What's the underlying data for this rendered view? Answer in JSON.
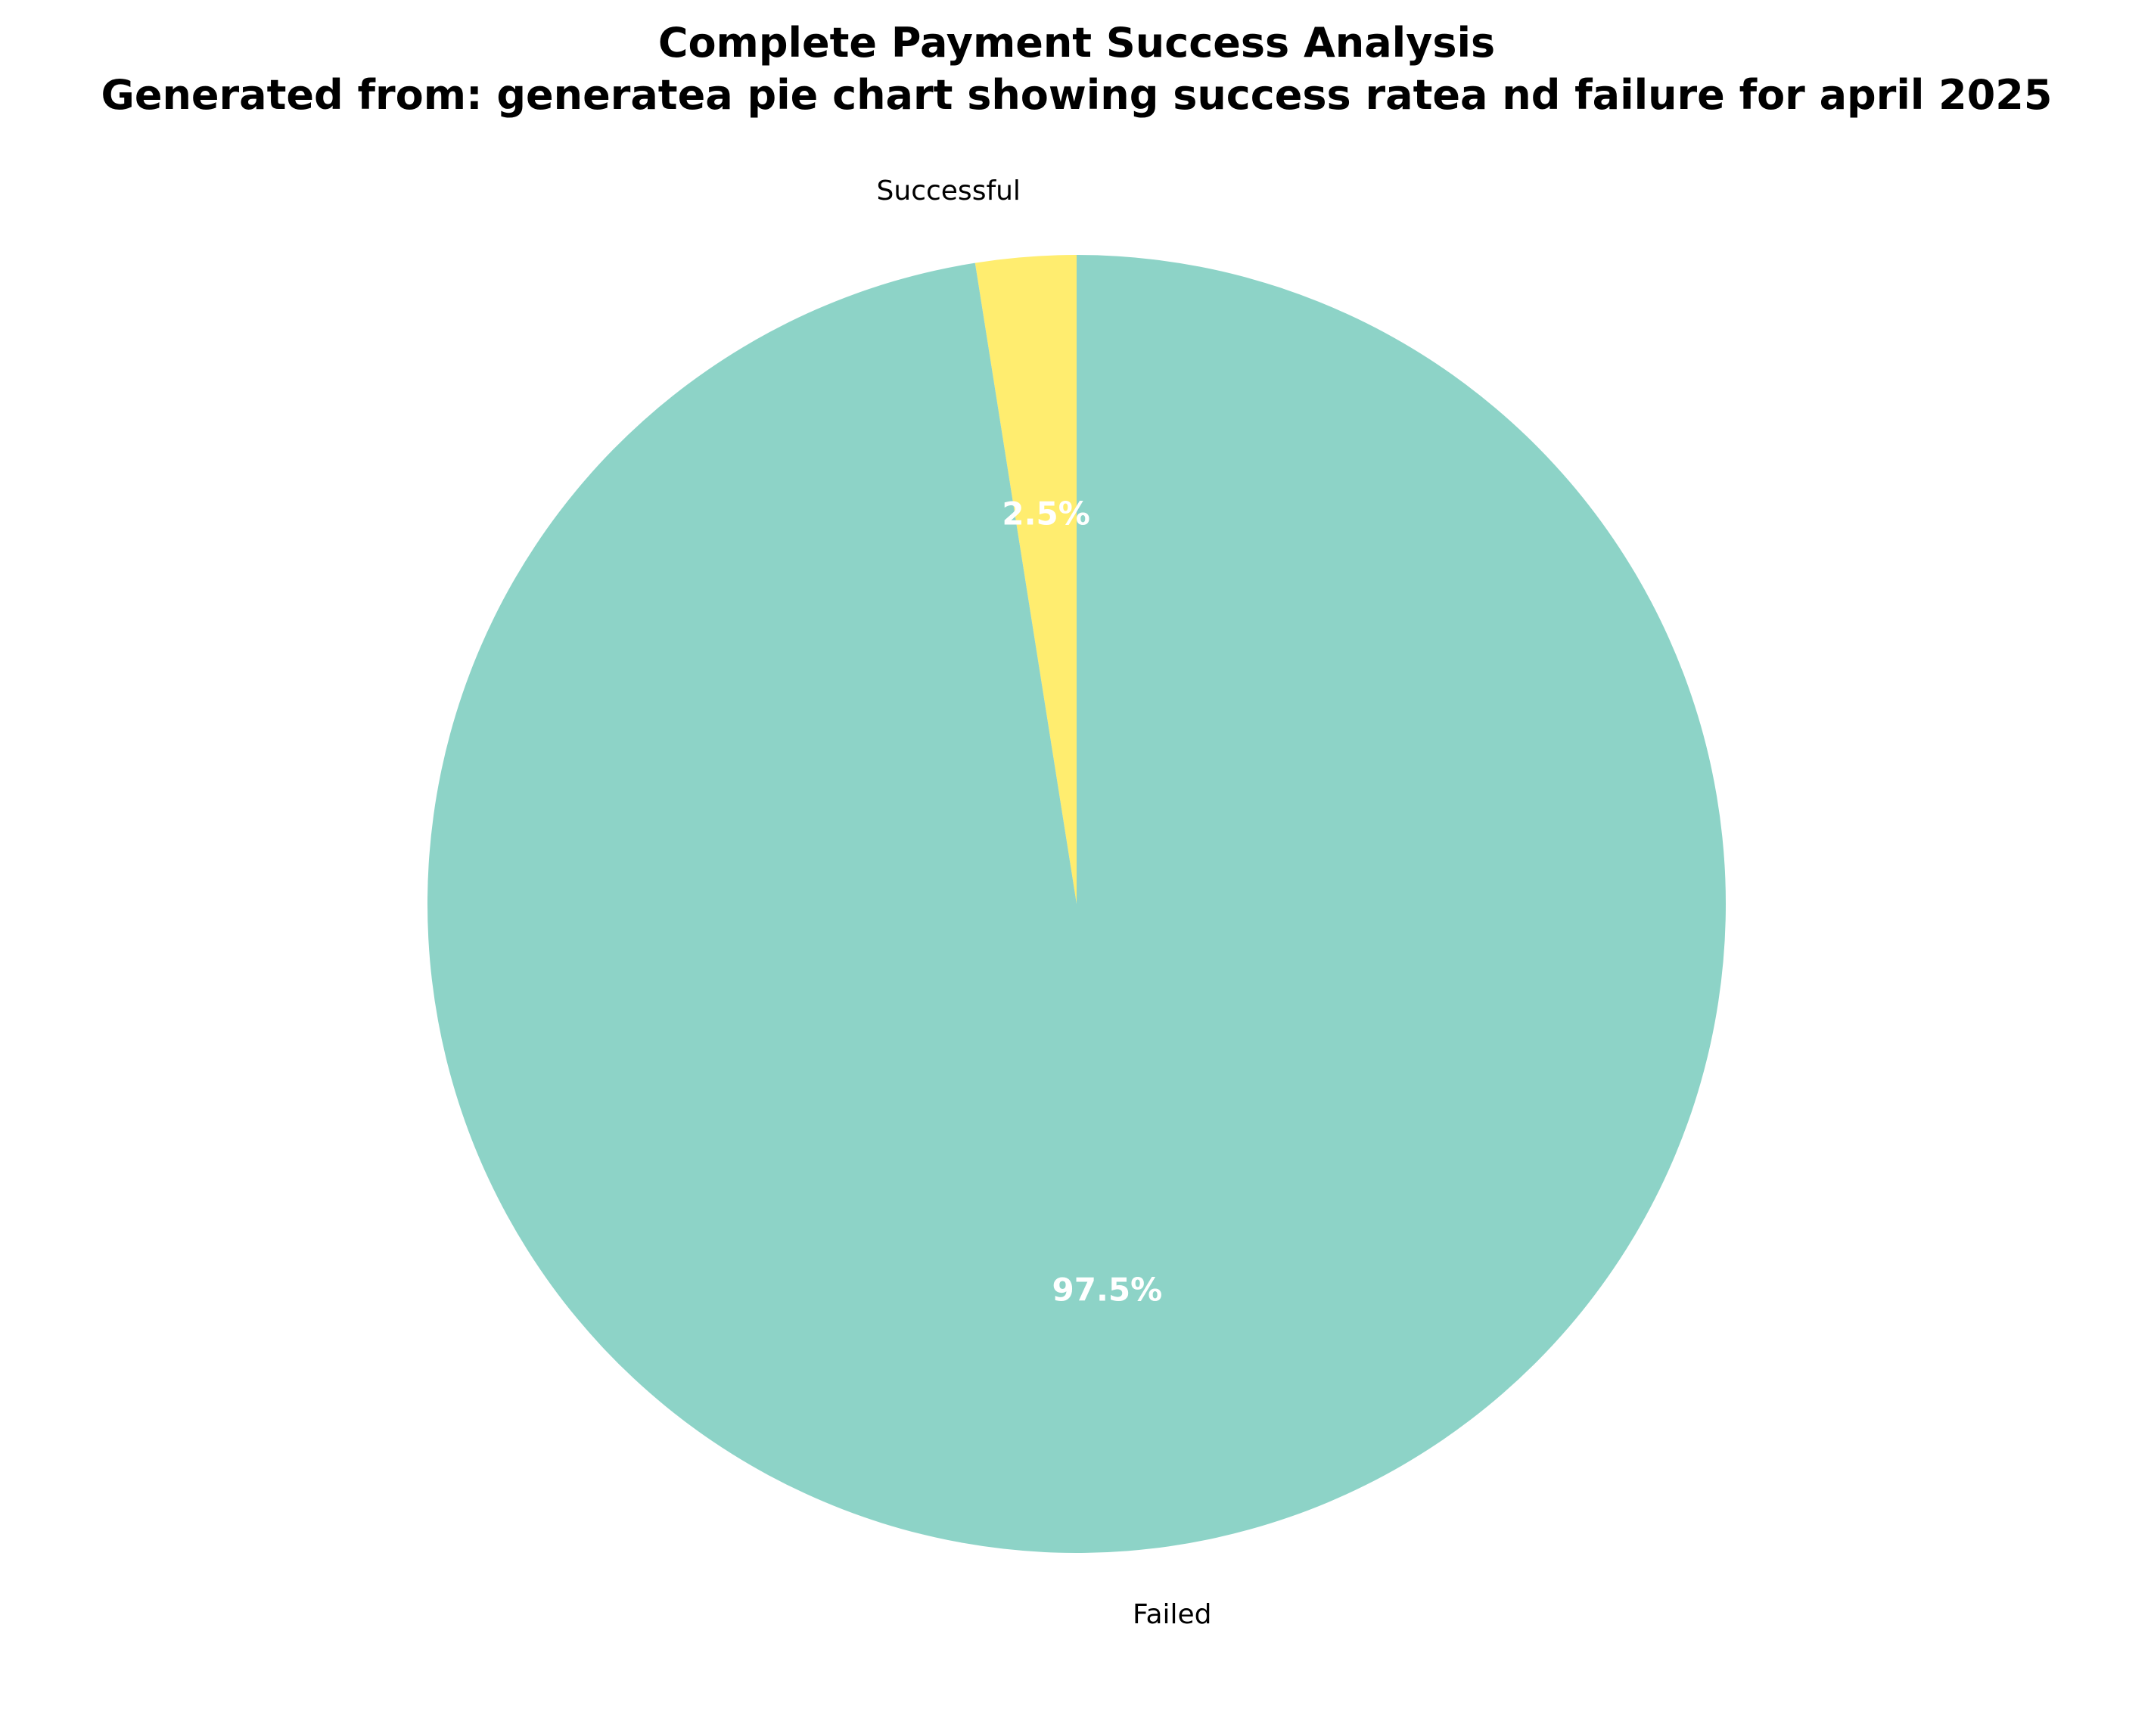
{
  "chart_data": {
    "type": "pie",
    "title": "Complete Payment Success Analysis",
    "subtitle": "Generated from: generatea pie chart showing success ratea nd failure for april 2025",
    "slices": [
      {
        "label": "Successful",
        "value": 2.5,
        "pct_label": "2.5%",
        "color": "#ffed6f"
      },
      {
        "label": "Failed",
        "value": 97.5,
        "pct_label": "97.5%",
        "color": "#8dd3c7"
      }
    ],
    "start_angle_deg": 90,
    "direction": "counterclockwise",
    "legend": "none"
  }
}
